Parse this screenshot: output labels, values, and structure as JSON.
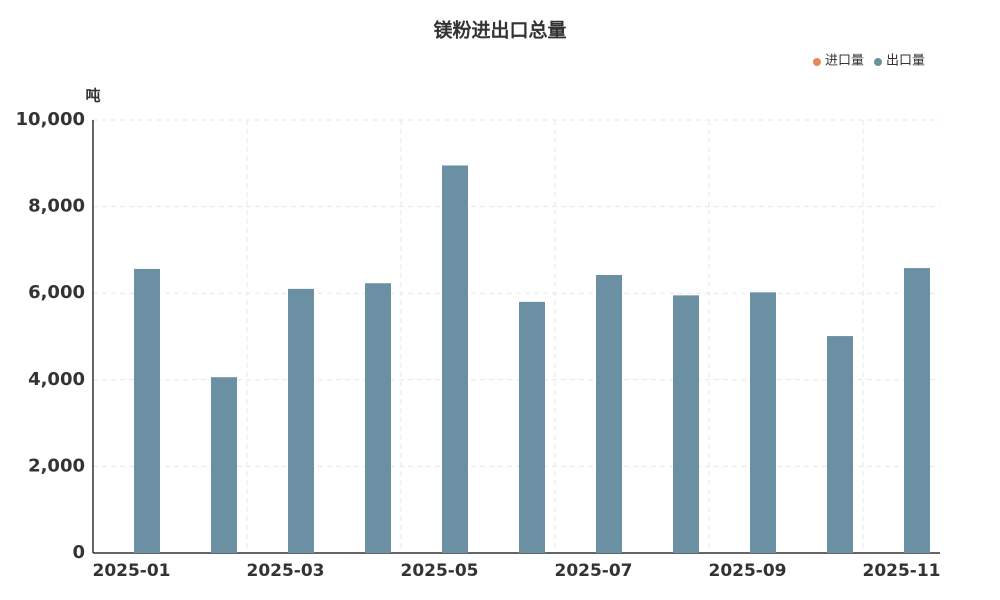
{
  "chart_data": {
    "type": "bar",
    "title": "镁粉进出口总量",
    "y_unit": "吨",
    "categories": [
      "2025-01",
      null,
      "2025-03",
      null,
      "2025-05",
      null,
      "2025-07",
      null,
      "2025-09",
      null,
      "2025-11"
    ],
    "series": [
      {
        "name": "进口量",
        "color": "#e8885a",
        "values": [
          null,
          null,
          null,
          null,
          null,
          null,
          null,
          null,
          null,
          null,
          null
        ]
      },
      {
        "name": "出口量",
        "color": "#6b90a3",
        "values": [
          6560,
          4060,
          6100,
          6230,
          8950,
          5800,
          6420,
          5950,
          6020,
          5010,
          6580
        ]
      }
    ],
    "ylim": [
      0,
      10000
    ],
    "yticks": [
      0,
      {
        "value": 2000,
        "label": "2,000"
      },
      {
        "value": 4000,
        "label": "4,000"
      },
      {
        "value": 6000,
        "label": "6,000"
      },
      {
        "value": 8000,
        "label": "8,000"
      },
      {
        "value": 10000,
        "label": "10,000"
      }
    ],
    "grid": true,
    "legend": "top-right"
  }
}
